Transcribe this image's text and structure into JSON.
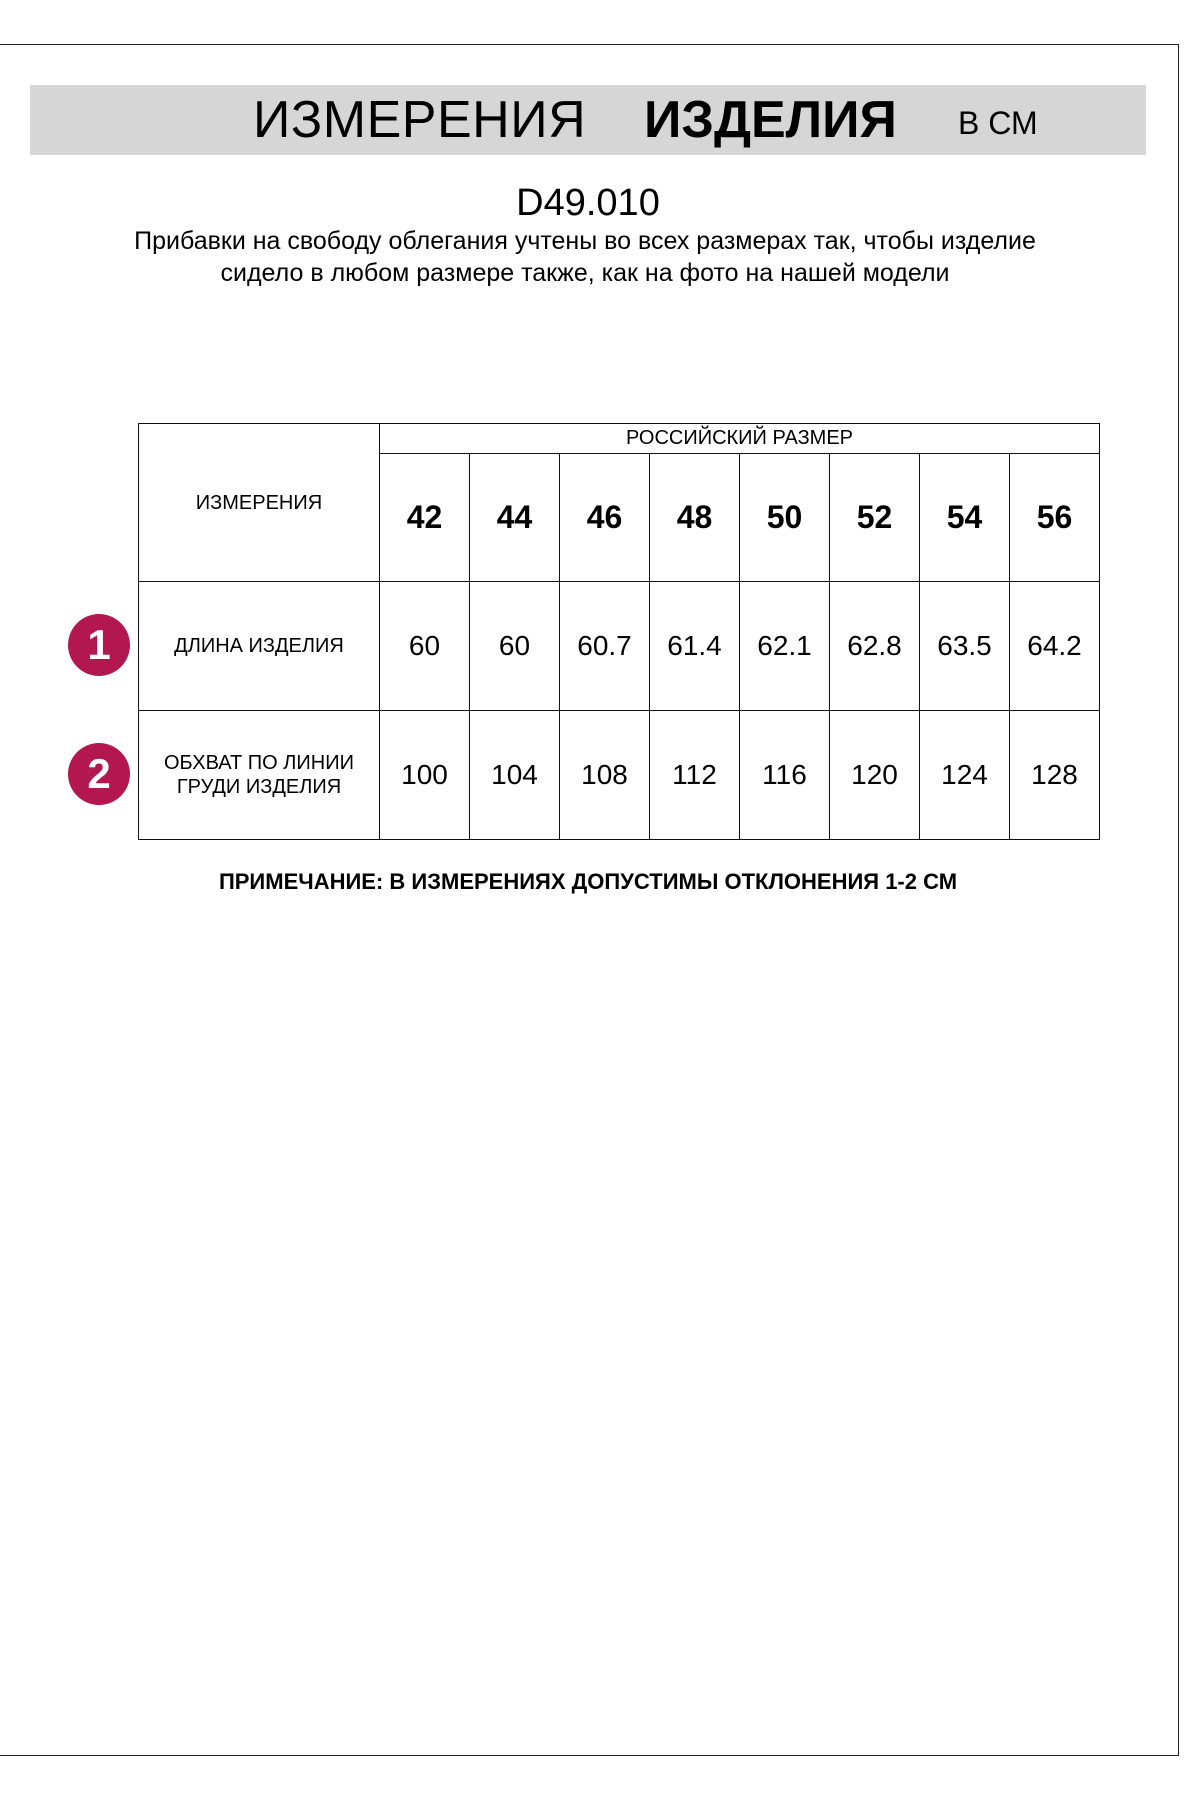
{
  "header": {
    "title_regular": "ИЗМЕРЕНИЯ",
    "title_bold": "ИЗДЕЛИЯ",
    "unit": "В СМ"
  },
  "product_code": "D49.010",
  "description": "Прибавки на свободу облегания учтены во всех размерах так, чтобы изделие сидело в любом размере также, как на фото на нашей модели",
  "table": {
    "measurements_header": "ИЗМЕРЕНИЯ",
    "size_group_header": "РОССИЙСКИЙ РАЗМЕР",
    "sizes": [
      "42",
      "44",
      "46",
      "48",
      "50",
      "52",
      "54",
      "56"
    ],
    "rows": [
      {
        "number": "1",
        "label": "ДЛИНА ИЗДЕЛИЯ",
        "values": [
          "60",
          "60",
          "60.7",
          "61.4",
          "62.1",
          "62.8",
          "63.5",
          "64.2"
        ]
      },
      {
        "number": "2",
        "label": "ОБХВАТ ПО ЛИНИИ ГРУДИ ИЗДЕЛИЯ",
        "values": [
          "100",
          "104",
          "108",
          "112",
          "116",
          "120",
          "124",
          "128"
        ]
      }
    ]
  },
  "note": "ПРИМЕЧАНИЕ: В ИЗМЕРЕНИЯХ ДОПУСТИМЫ ОТКЛОНЕНИЯ 1-2 СМ",
  "colors": {
    "badge": "#b3174f",
    "band": "#d6d6d6"
  }
}
